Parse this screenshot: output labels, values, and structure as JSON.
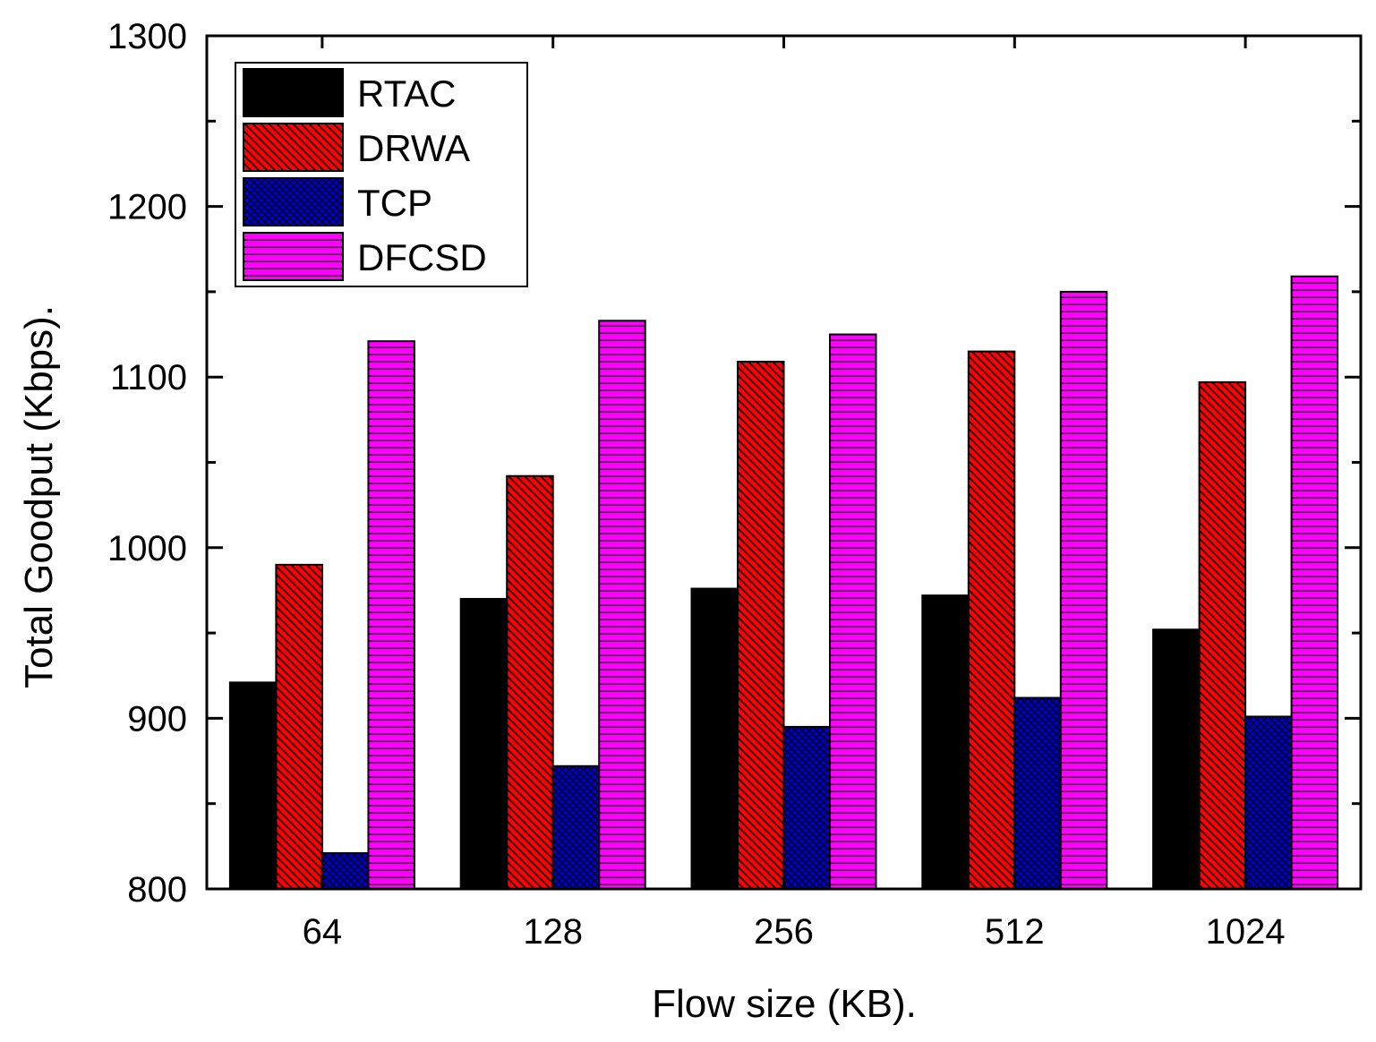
{
  "chart_data": {
    "type": "bar",
    "xlabel": "Flow size (KB).",
    "ylabel": "Total Goodput (Kbps).",
    "ylim": [
      800,
      1300
    ],
    "yticks": [
      800,
      900,
      1000,
      1100,
      1200,
      1300
    ],
    "categories": [
      "64",
      "128",
      "256",
      "512",
      "1024"
    ],
    "legend_position": "top-left",
    "series": [
      {
        "name": "RTAC",
        "pattern": "solid",
        "color": "#000000",
        "values": [
          921,
          970,
          976,
          972,
          952
        ]
      },
      {
        "name": "DRWA",
        "pattern": "diagonal",
        "color": "#ff0000",
        "values": [
          990,
          1042,
          1109,
          1115,
          1097
        ]
      },
      {
        "name": "TCP",
        "pattern": "crosshatch",
        "color": "#0000cc",
        "values": [
          821,
          872,
          895,
          912,
          901
        ]
      },
      {
        "name": "DFCSD",
        "pattern": "horizontal",
        "color": "#ff00ff",
        "values": [
          1121,
          1133,
          1125,
          1150,
          1159
        ]
      }
    ]
  }
}
